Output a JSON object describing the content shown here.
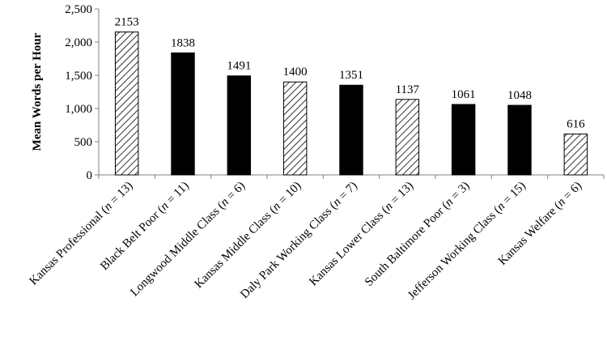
{
  "chart_data": {
    "type": "bar",
    "title": "",
    "xlabel": "",
    "ylabel": "Mean Words per Hour",
    "ylim": [
      0,
      2500
    ],
    "yticks": [
      0,
      500,
      1000,
      1500,
      2000,
      2500
    ],
    "ytick_labels": [
      "0",
      "500",
      "1,000",
      "1,500",
      "2,000",
      "2,500"
    ],
    "grid": false,
    "legend": "none",
    "categories": [
      {
        "name": "Kansas Professional",
        "n": "13"
      },
      {
        "name": "Black Belt Poor",
        "n": "11"
      },
      {
        "name": "Longwood Middle Class",
        "n": "6"
      },
      {
        "name": "Kansas Middle Class",
        "n": "10"
      },
      {
        "name": "Daly Park Working Class",
        "n": "7"
      },
      {
        "name": "Kansas Lower Class",
        "n": "13"
      },
      {
        "name": "South Baltimore Poor",
        "n": "3"
      },
      {
        "name": "Jefferson Working Class",
        "n": "15"
      },
      {
        "name": "Kansas Welfare",
        "n": "6"
      }
    ],
    "values": [
      2153,
      1838,
      1491,
      1400,
      1351,
      1137,
      1061,
      1048,
      616
    ],
    "fills": [
      "hatched",
      "solid",
      "solid",
      "hatched",
      "solid",
      "hatched",
      "solid",
      "solid",
      "hatched"
    ],
    "colors": {
      "solid": "#000000",
      "hatch_line": "#000000",
      "hatch_bg": "#ffffff",
      "axis": "#808080"
    }
  }
}
